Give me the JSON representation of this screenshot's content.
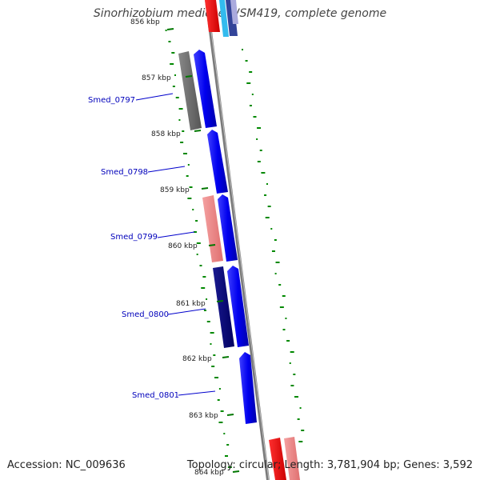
{
  "title": "Sinorhizobium medicae WSM419, complete genome",
  "accession": "Accession: NC_009636",
  "topology": "Topology: circular; Length: 3,781,904 bp; Genes: 3,592",
  "kbp_labels": [
    {
      "text": "856 kbp"
    },
    {
      "text": "857 kbp"
    },
    {
      "text": "858 kbp"
    },
    {
      "text": "859 kbp"
    },
    {
      "text": "860 kbp"
    },
    {
      "text": "861 kbp"
    },
    {
      "text": "862 kbp"
    },
    {
      "text": "863 kbp"
    },
    {
      "text": "864 kbp"
    }
  ],
  "gene_labels": [
    {
      "text": "Smed_0797"
    },
    {
      "text": "Smed_0798"
    },
    {
      "text": "Smed_0799"
    },
    {
      "text": "Smed_0800"
    },
    {
      "text": "Smed_0801"
    }
  ],
  "colors": {
    "forward_gene": "#0000ee",
    "dark_gene": "#000080",
    "grey_gene": "#666666",
    "pink_gene": "#ee8888",
    "red_gene": "#ee0000",
    "backbone": "#888888",
    "gc_ticks": "#007700",
    "label": "#0000bb"
  }
}
